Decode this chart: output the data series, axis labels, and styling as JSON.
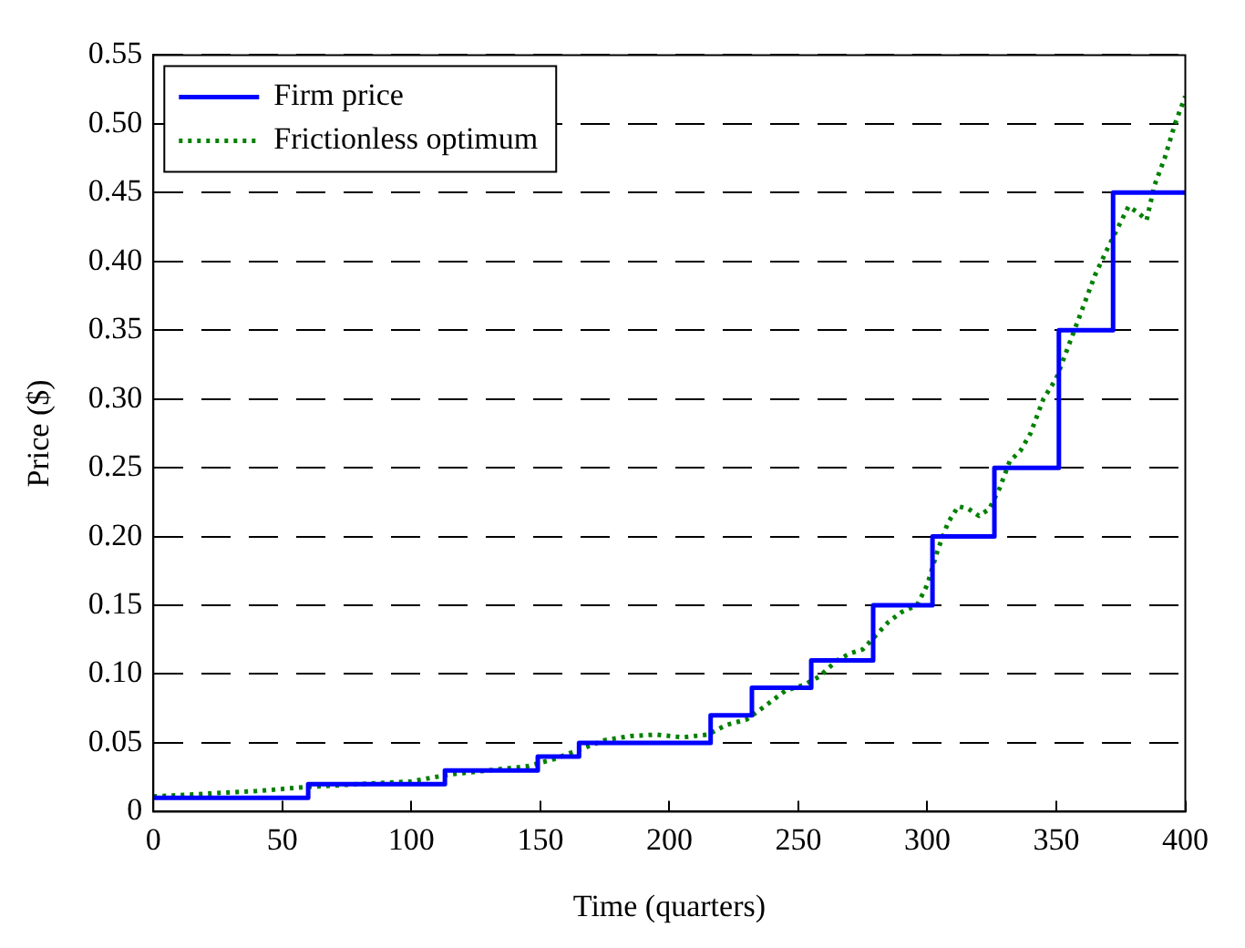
{
  "chart_data": {
    "type": "line",
    "xlabel": "Time (quarters)",
    "ylabel": "Price ($)",
    "xlim": [
      0,
      400
    ],
    "xticks": [
      0,
      50,
      100,
      150,
      200,
      250,
      300,
      350,
      400
    ],
    "ylim": [
      0,
      0.55
    ],
    "yticks": [
      0,
      0.05,
      {
        "value": 0.1,
        "label": "0.10"
      },
      0.15,
      {
        "value": 0.2,
        "label": "0.20"
      },
      0.25,
      {
        "value": 0.3,
        "label": "0.30"
      },
      0.35,
      {
        "value": 0.4,
        "label": "0.40"
      },
      0.45,
      {
        "value": 0.5,
        "label": "0.50"
      },
      0.55
    ],
    "grid": "y",
    "legend": "top left",
    "marker": "none",
    "series": [
      {
        "name": "Firm price",
        "type": "step",
        "color": "#0000ff",
        "line_style": "solid",
        "x": [
          0,
          60,
          113,
          149,
          165,
          216,
          232,
          255,
          279,
          302,
          326,
          351,
          372,
          400
        ],
        "values": [
          0.01,
          0.02,
          0.03,
          0.04,
          0.05,
          0.07,
          0.09,
          0.11,
          0.15,
          0.2,
          0.25,
          0.35,
          0.45,
          0.45
        ]
      },
      {
        "name": "Frictionless optimum",
        "type": "line",
        "color": "#008000",
        "line_style": "dotted",
        "x": [
          0,
          20,
          40,
          60,
          80,
          100,
          115,
          130,
          145,
          155,
          165,
          175,
          185,
          195,
          205,
          215,
          222,
          230,
          238,
          245,
          252,
          258,
          265,
          270,
          275,
          280,
          285,
          290,
          296,
          300,
          304,
          308,
          312,
          316,
          320,
          324,
          328,
          332,
          336,
          340,
          345,
          350,
          355,
          360,
          365,
          370,
          374,
          378,
          382,
          385,
          388,
          392,
          396,
          400
        ],
        "values": [
          0.011,
          0.013,
          0.015,
          0.018,
          0.02,
          0.022,
          0.027,
          0.03,
          0.033,
          0.038,
          0.045,
          0.052,
          0.055,
          0.056,
          0.054,
          0.056,
          0.063,
          0.067,
          0.078,
          0.088,
          0.092,
          0.098,
          0.11,
          0.115,
          0.118,
          0.128,
          0.138,
          0.145,
          0.15,
          0.165,
          0.19,
          0.21,
          0.222,
          0.22,
          0.215,
          0.22,
          0.235,
          0.255,
          0.262,
          0.275,
          0.3,
          0.315,
          0.34,
          0.365,
          0.39,
          0.41,
          0.425,
          0.44,
          0.435,
          0.43,
          0.455,
          0.475,
          0.5,
          0.52
        ]
      }
    ]
  }
}
